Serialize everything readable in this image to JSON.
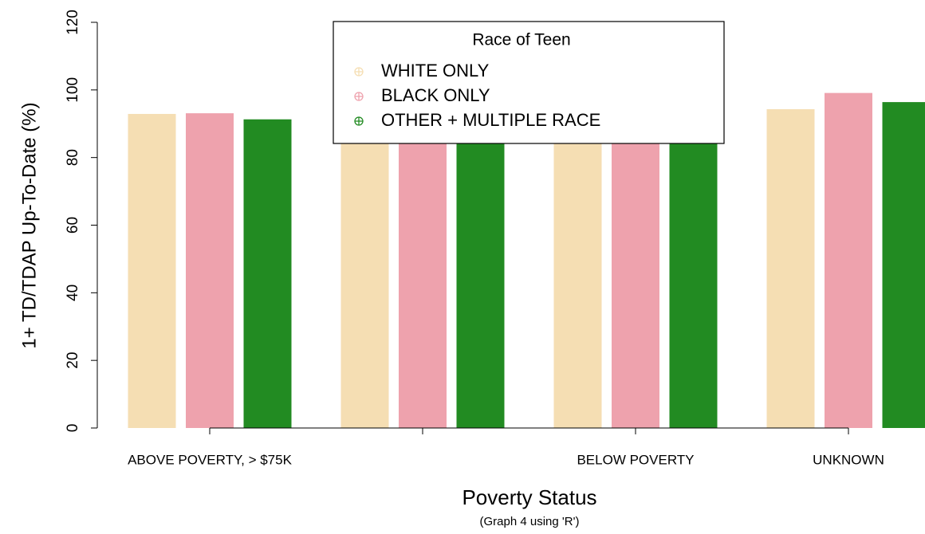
{
  "chart_data": {
    "type": "bar",
    "xlabel": "Poverty Status",
    "subtitle": "(Graph 4 using 'R')",
    "ylabel": "1+ TD/TDAP Up-To-Date (%)",
    "categories": [
      "ABOVE POVERTY, > $75K",
      null,
      "BELOW POVERTY",
      "UNKNOWN"
    ],
    "series": [
      {
        "name": "WHITE ONLY",
        "color": "#f5deb3",
        "values": [
          92.9,
          91,
          90,
          94.3
        ]
      },
      {
        "name": "BLACK ONLY",
        "color": "#eea2ad",
        "values": [
          93.1,
          93,
          92,
          99.1
        ]
      },
      {
        "name": "OTHER + MULTIPLE RACE",
        "color": "#228b22",
        "values": [
          91.3,
          90,
          89,
          96.4
        ]
      }
    ],
    "legend_title": "Race of Teen",
    "legend": "top",
    "ylim": [
      0,
      120
    ],
    "yticks": [
      0,
      20,
      40,
      60,
      80,
      100,
      120
    ]
  }
}
